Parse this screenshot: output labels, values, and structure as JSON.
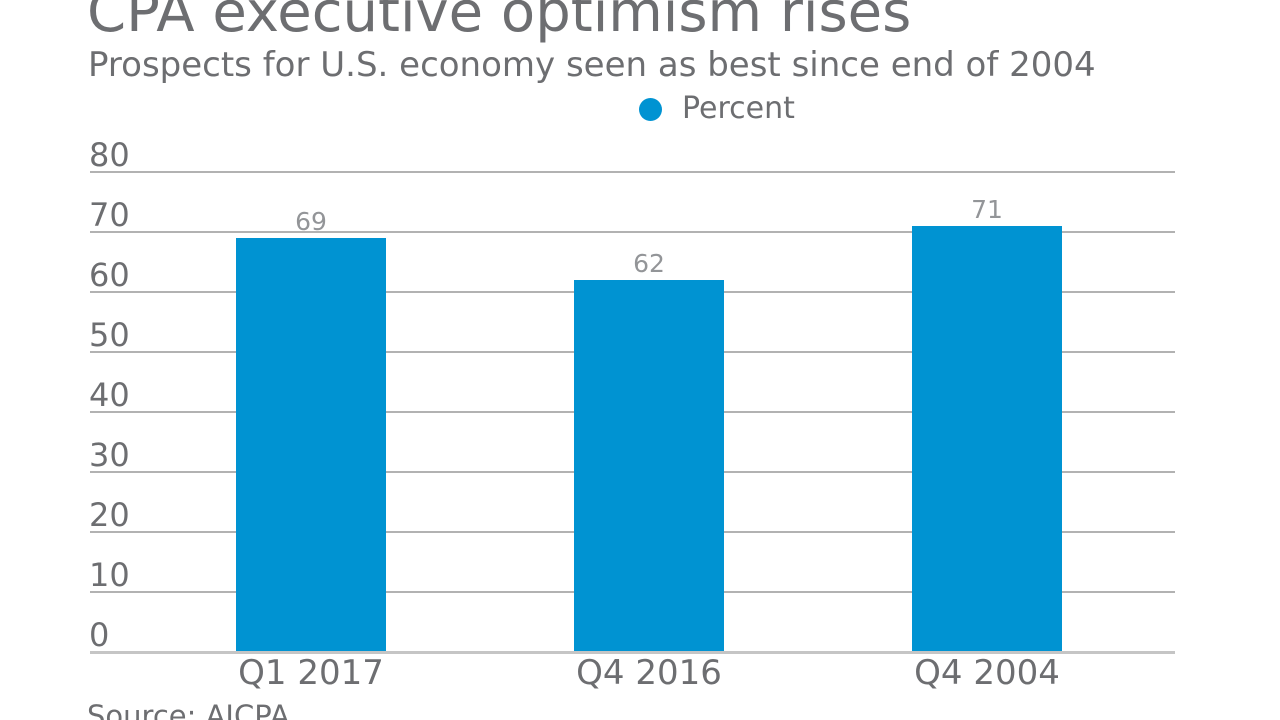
{
  "header": {
    "title": "CPA executive optimism rises",
    "subtitle": "Prospects for U.S. economy seen as best since end of 2004"
  },
  "legend": {
    "label": "Percent"
  },
  "source": "Source: AICPA",
  "colors": {
    "bar": "#0093d2",
    "gridline": "#b2b2b2",
    "axis_line": "#c5c5c5",
    "text": "#6d6e71",
    "value_label": "#939598"
  },
  "chart_data": {
    "type": "bar",
    "title": "CPA executive optimism rises",
    "subtitle": "Prospects for U.S. economy seen as best since end of 2004",
    "categories": [
      "Q1 2017",
      "Q4 2016",
      "Q4 2004"
    ],
    "values": [
      69,
      62,
      71
    ],
    "series_name": "Percent",
    "xlabel": "",
    "ylabel": "",
    "ylim": [
      0,
      80
    ],
    "ytick_step": 10,
    "yticks": [
      0,
      10,
      20,
      30,
      40,
      50,
      60,
      70,
      80
    ],
    "grid": true,
    "legend_position": "top-center",
    "source": "Source: AICPA"
  }
}
